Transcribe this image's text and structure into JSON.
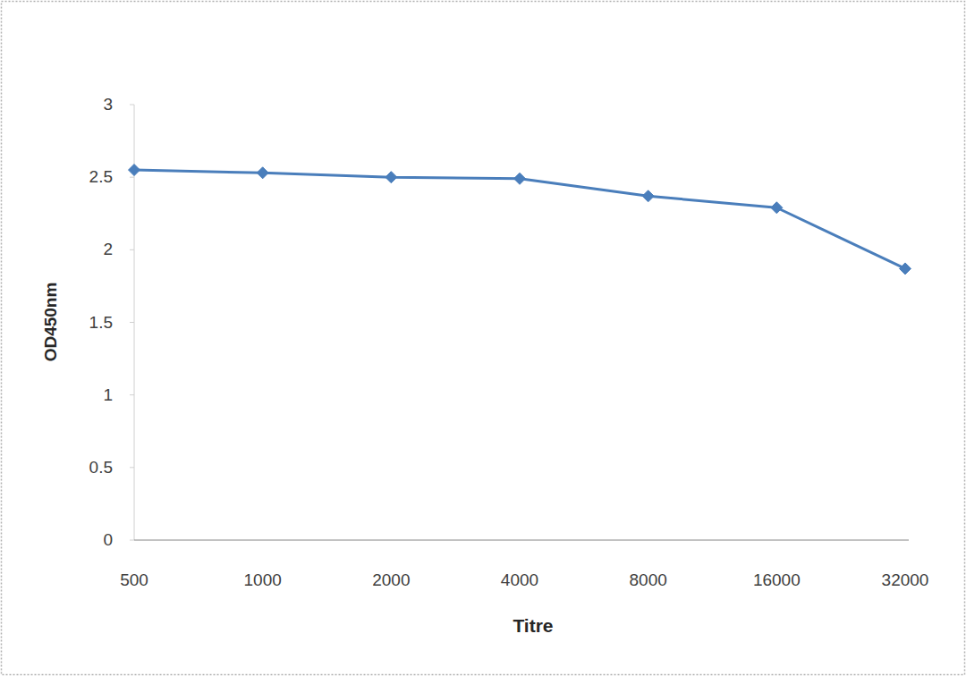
{
  "chart_data": {
    "type": "line",
    "x_label": "Titre",
    "y_label": "OD450nm",
    "categories": [
      "500",
      "1000",
      "2000",
      "4000",
      "8000",
      "16000",
      "32000"
    ],
    "values": [
      2.55,
      2.53,
      2.5,
      2.49,
      2.37,
      2.29,
      1.87
    ],
    "color": "#4a7ebb",
    "marker": "diamond",
    "ylim": [
      0,
      3
    ],
    "yticks": [
      0,
      0.5,
      1,
      1.5,
      2,
      2.5,
      3
    ],
    "grid": false
  }
}
